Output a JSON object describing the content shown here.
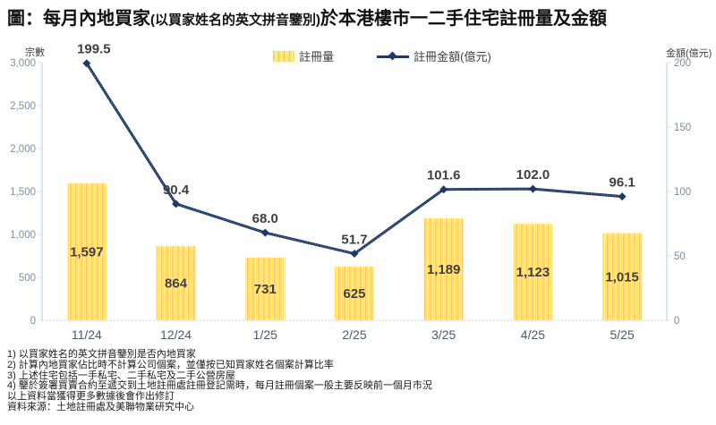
{
  "title": {
    "prefix": "圖：每月內地買家",
    "paren": "(以買家姓名的英文拼音鑒別)",
    "suffix": "於本港樓市一二手住宅註冊量及金額"
  },
  "legend": {
    "bar_label": "註冊量",
    "line_label": "註冊金額(億元)"
  },
  "chart_data": {
    "type": "combo",
    "categories": [
      "11/24",
      "12/24",
      "1/25",
      "2/25",
      "3/25",
      "4/25",
      "5/25"
    ],
    "series": [
      {
        "name": "註冊量",
        "type": "bar",
        "axis": "left",
        "values": [
          1597,
          864,
          731,
          625,
          1189,
          1123,
          1015
        ],
        "labels": [
          "1,597",
          "864",
          "731",
          "625",
          "1,189",
          "1,123",
          "1,015"
        ]
      },
      {
        "name": "註冊金額(億元)",
        "type": "line",
        "axis": "right",
        "values": [
          199.5,
          90.4,
          68.0,
          51.7,
          101.6,
          102.0,
          96.1
        ],
        "labels": [
          "199.5",
          "90.4",
          "68.0",
          "51.7",
          "101.6",
          "102.0",
          "96.1"
        ]
      }
    ],
    "left_axis": {
      "title": "宗數",
      "min": 0,
      "max": 3000,
      "step": 500
    },
    "right_axis": {
      "title": "金額(億元)",
      "min": 0,
      "max": 200,
      "step": 50
    },
    "title": "圖：每月內地買家(以買家姓名的英文拼音鑒別)於本港樓市一二手住宅註冊量及金額",
    "grid": "baseline-only",
    "legend_position": "top-center"
  },
  "footnotes": [
    "1) 以買家姓名的英文拼音鑒別是否內地買家",
    "2) 計算內地買家佔比時不計算公司個案，並僅按已知買家姓名個案計算比率",
    "3) 上述住宅包括一手私宅、二手私宅及二手公營房屋",
    "4) 鑒於簽署買賣合約至遞交到土地註冊處註冊登記需時，每月註冊個案一般主要反映前一個月市況",
    "以上資料當獲得更多數據後會作出修訂",
    "資料來源：土地註冊處及美聯物業研究中心"
  ],
  "colors": {
    "line": "#1F3864",
    "line_core_dots": "#7EA6D4",
    "bar_yellow": "#FFE360",
    "bar_pale": "#FFF5B2",
    "bar_orange": "#F8C57F",
    "axis_line": "#C9E2F2",
    "tick_text": "#7D8F9E",
    "x_label_text": "#4A5A6A",
    "data_label_text": "#3F3F3F",
    "baseline": "#C8CDD1"
  }
}
